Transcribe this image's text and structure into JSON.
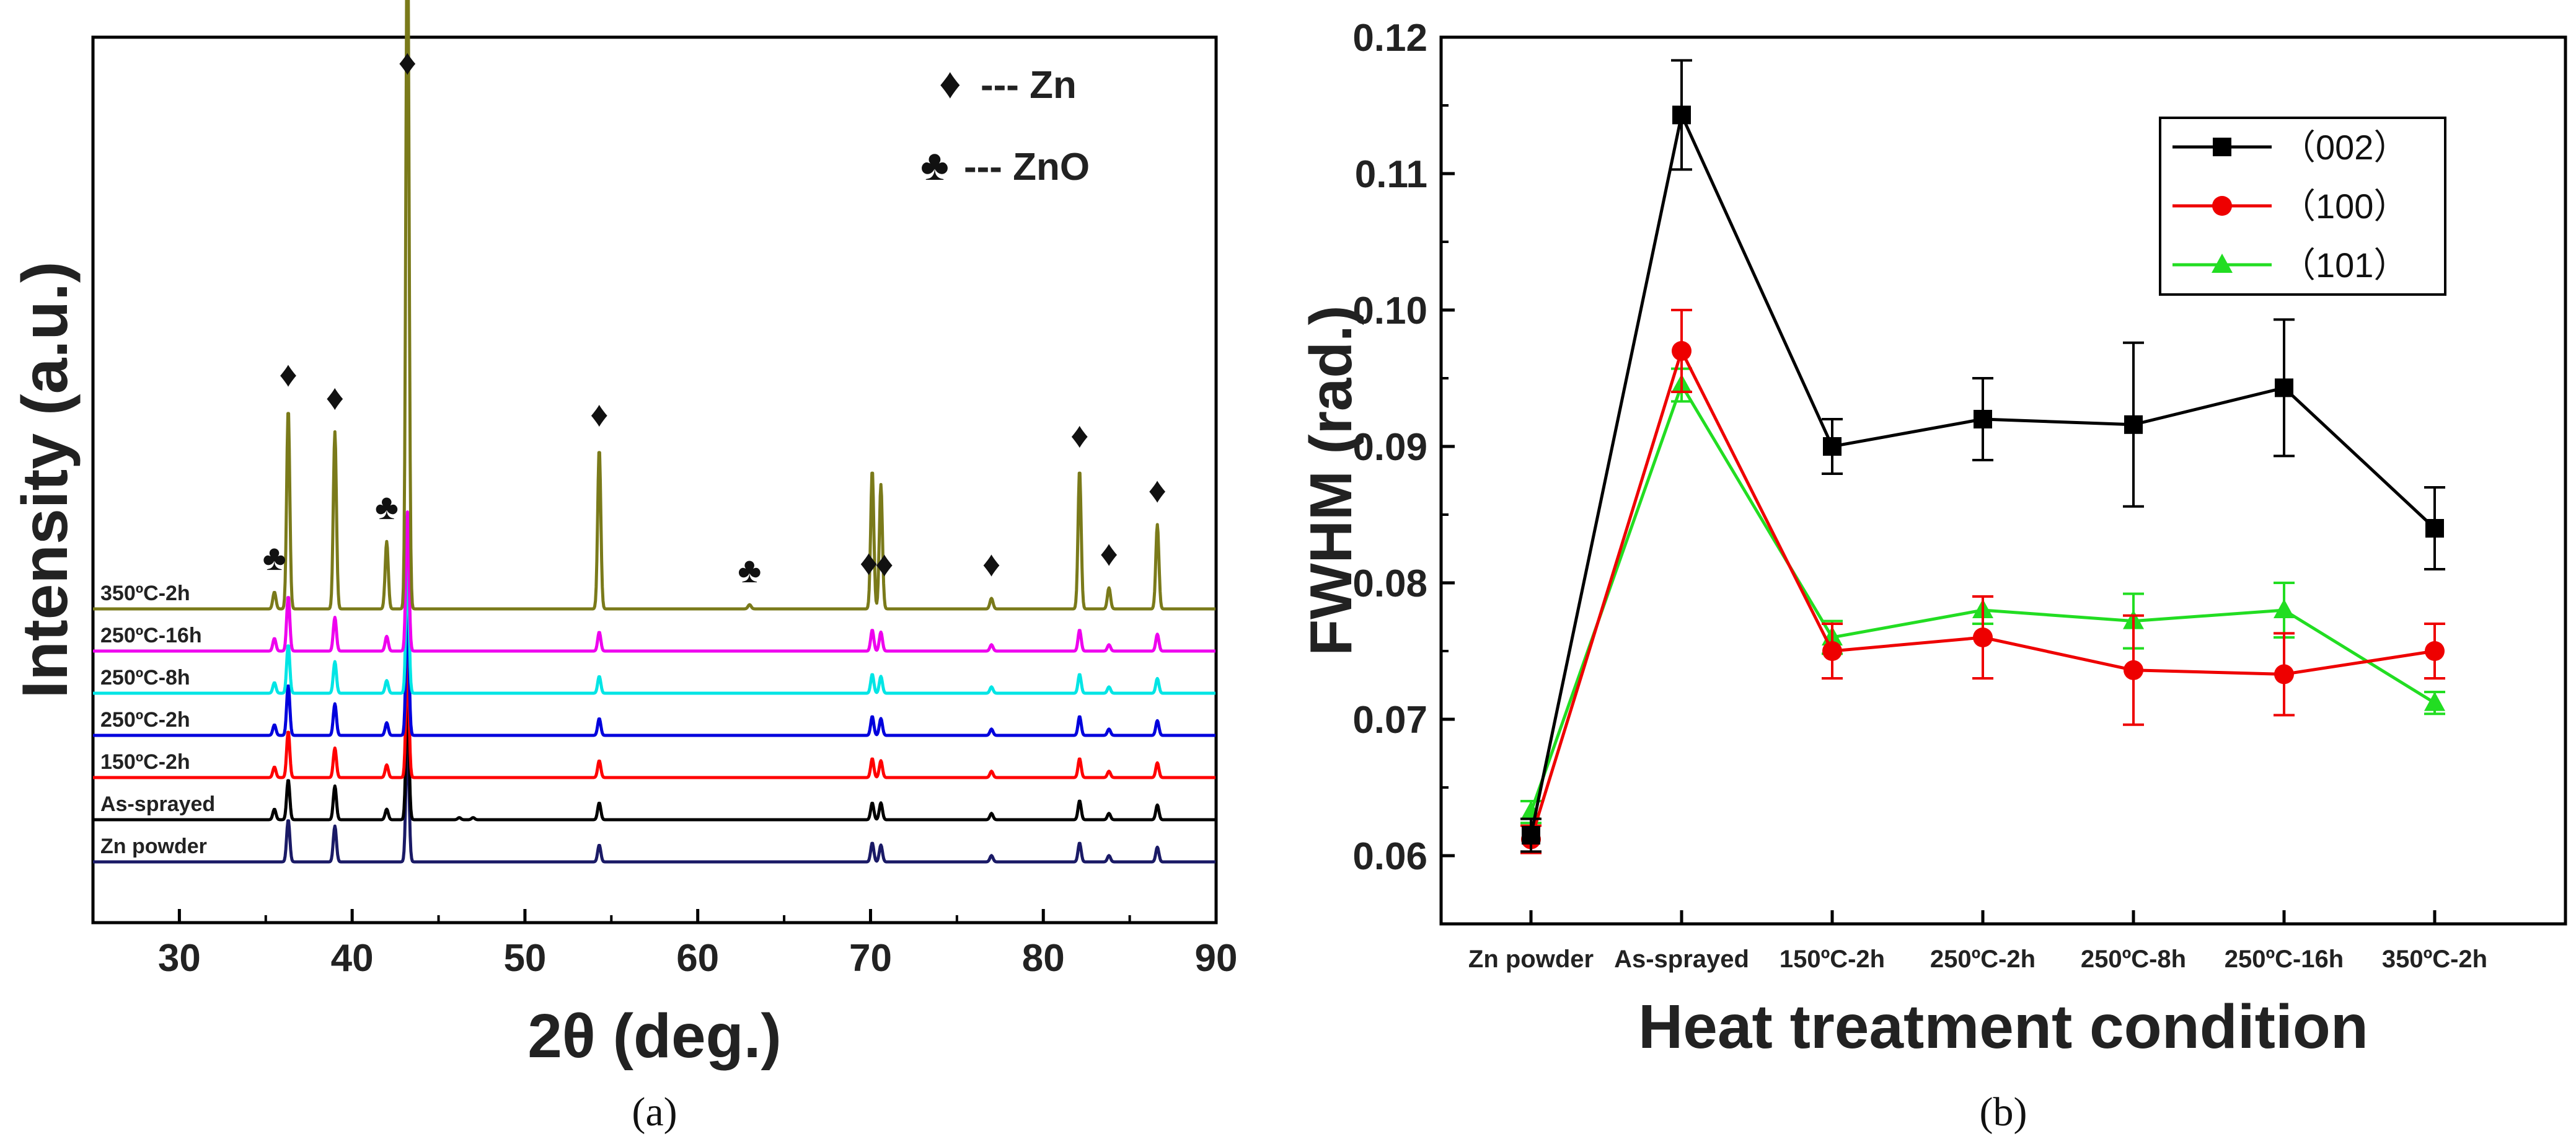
{
  "chart_data": [
    {
      "type": "line",
      "caption": "(a)",
      "xlabel": "2θ (deg.)",
      "ylabel": "Intensity (a.u.)",
      "xlim": [
        25,
        90
      ],
      "xticks": [
        30,
        40,
        50,
        60,
        70,
        80,
        90
      ],
      "legend": [
        {
          "symbol": "♦",
          "label": "--- Zn"
        },
        {
          "symbol": "♣",
          "label": "--- ZnO"
        }
      ],
      "series": [
        {
          "name": "Zn powder",
          "color": "#1a1a66",
          "offset": 0,
          "peaks": [
            [
              36.3,
              0.2
            ],
            [
              39.0,
              0.17
            ],
            [
              43.2,
              0.6
            ],
            [
              54.3,
              0.08
            ],
            [
              70.1,
              0.09
            ],
            [
              70.6,
              0.08
            ],
            [
              77.0,
              0.03
            ],
            [
              82.1,
              0.09
            ],
            [
              83.8,
              0.03
            ],
            [
              86.6,
              0.07
            ]
          ]
        },
        {
          "name": "As-sprayed",
          "color": "#000000",
          "offset": 1,
          "peaks": [
            [
              35.5,
              0.05
            ],
            [
              36.3,
              0.19
            ],
            [
              39.0,
              0.16
            ],
            [
              42.0,
              0.05
            ],
            [
              43.2,
              0.58
            ],
            [
              46.2,
              0.01
            ],
            [
              47.0,
              0.01
            ],
            [
              54.3,
              0.08
            ],
            [
              70.1,
              0.08
            ],
            [
              70.6,
              0.08
            ],
            [
              77.0,
              0.03
            ],
            [
              82.1,
              0.09
            ],
            [
              83.8,
              0.03
            ],
            [
              86.6,
              0.07
            ]
          ]
        },
        {
          "name": "150ºC-2h",
          "color": "#ff0000",
          "offset": 2,
          "peaks": [
            [
              35.5,
              0.05
            ],
            [
              36.3,
              0.22
            ],
            [
              39.0,
              0.14
            ],
            [
              42.0,
              0.06
            ],
            [
              43.2,
              0.57
            ],
            [
              54.3,
              0.08
            ],
            [
              70.1,
              0.09
            ],
            [
              70.6,
              0.08
            ],
            [
              77.0,
              0.03
            ],
            [
              82.1,
              0.09
            ],
            [
              83.8,
              0.03
            ],
            [
              86.6,
              0.07
            ]
          ]
        },
        {
          "name": "250ºC-2h",
          "color": "#0000dd",
          "offset": 3,
          "peaks": [
            [
              35.5,
              0.05
            ],
            [
              36.3,
              0.24
            ],
            [
              39.0,
              0.15
            ],
            [
              42.0,
              0.06
            ],
            [
              43.2,
              0.6
            ],
            [
              54.3,
              0.08
            ],
            [
              70.1,
              0.09
            ],
            [
              70.6,
              0.08
            ],
            [
              77.0,
              0.03
            ],
            [
              82.1,
              0.09
            ],
            [
              83.8,
              0.03
            ],
            [
              86.6,
              0.07
            ]
          ]
        },
        {
          "name": "250ºC-8h",
          "color": "#00e5e5",
          "offset": 4,
          "peaks": [
            [
              35.5,
              0.05
            ],
            [
              36.3,
              0.23
            ],
            [
              39.0,
              0.15
            ],
            [
              42.0,
              0.06
            ],
            [
              43.2,
              0.62
            ],
            [
              54.3,
              0.08
            ],
            [
              70.1,
              0.09
            ],
            [
              70.6,
              0.08
            ],
            [
              77.0,
              0.03
            ],
            [
              82.1,
              0.09
            ],
            [
              83.8,
              0.03
            ],
            [
              86.6,
              0.07
            ]
          ]
        },
        {
          "name": "250ºC-16h",
          "color": "#ee00ee",
          "offset": 5,
          "peaks": [
            [
              35.5,
              0.06
            ],
            [
              36.3,
              0.26
            ],
            [
              39.0,
              0.16
            ],
            [
              42.0,
              0.07
            ],
            [
              43.2,
              0.66
            ],
            [
              54.3,
              0.09
            ],
            [
              70.1,
              0.1
            ],
            [
              70.6,
              0.09
            ],
            [
              77.0,
              0.03
            ],
            [
              82.1,
              0.1
            ],
            [
              83.8,
              0.03
            ],
            [
              86.6,
              0.08
            ]
          ]
        },
        {
          "name": "350ºC-2h",
          "color": "#7a7a1a",
          "offset": 6,
          "peaks": [
            [
              35.5,
              0.08
            ],
            [
              36.3,
              0.95
            ],
            [
              39.0,
              0.84
            ],
            [
              42.0,
              0.32
            ],
            [
              43.2,
              3.4
            ],
            [
              54.3,
              0.76
            ],
            [
              63.0,
              0.02
            ],
            [
              70.1,
              0.66
            ],
            [
              70.6,
              0.59
            ],
            [
              77.0,
              0.05
            ],
            [
              82.1,
              0.66
            ],
            [
              83.8,
              0.1
            ],
            [
              86.6,
              0.4
            ]
          ]
        }
      ],
      "annotations": [
        {
          "symbol": "♣",
          "x": 35.5
        },
        {
          "symbol": "♦",
          "x": 36.3
        },
        {
          "symbol": "♦",
          "x": 39.0
        },
        {
          "symbol": "♣",
          "x": 42.0
        },
        {
          "symbol": "♦",
          "x": 43.2
        },
        {
          "symbol": "♦",
          "x": 54.3
        },
        {
          "symbol": "♣",
          "x": 63.0
        },
        {
          "symbol": "♦",
          "x": 69.9
        },
        {
          "symbol": "♦",
          "x": 70.8
        },
        {
          "symbol": "♦",
          "x": 77.0
        },
        {
          "symbol": "♦",
          "x": 82.1
        },
        {
          "symbol": "♦",
          "x": 83.8
        },
        {
          "symbol": "♦",
          "x": 86.6
        }
      ]
    },
    {
      "type": "line",
      "caption": "(b)",
      "xlabel": "Heat treatment condition",
      "ylabel": "FWHM (rad.)",
      "ylim": [
        0.055,
        0.12
      ],
      "yticks": [
        "0.06",
        "0.07",
        "0.08",
        "0.09",
        "0.10",
        "0.11",
        "0.12"
      ],
      "categories": [
        "Zn powder",
        "As-sprayed",
        "150ºC-2h",
        "250ºC-2h",
        "250ºC-8h",
        "250ºC-16h",
        "350ºC-2h"
      ],
      "series": [
        {
          "name": "（002）",
          "color": "#000000",
          "marker": "square",
          "values": [
            0.0615,
            0.1143,
            0.09,
            0.092,
            0.0916,
            0.0943,
            0.084
          ],
          "errors": [
            0.0012,
            0.004,
            0.002,
            0.003,
            0.006,
            0.005,
            0.003
          ]
        },
        {
          "name": "（100）",
          "color": "#ee0000",
          "marker": "circle",
          "values": [
            0.0612,
            0.097,
            0.075,
            0.076,
            0.0736,
            0.0733,
            0.075
          ],
          "errors": [
            0.001,
            0.003,
            0.002,
            0.003,
            0.004,
            0.003,
            0.002
          ]
        },
        {
          "name": "（101）",
          "color": "#22dd22",
          "marker": "triangle",
          "values": [
            0.0632,
            0.0945,
            0.076,
            0.078,
            0.0772,
            0.078,
            0.0712
          ],
          "errors": [
            0.0008,
            0.0012,
            0.0012,
            0.001,
            0.002,
            0.002,
            0.0008
          ]
        }
      ]
    }
  ]
}
